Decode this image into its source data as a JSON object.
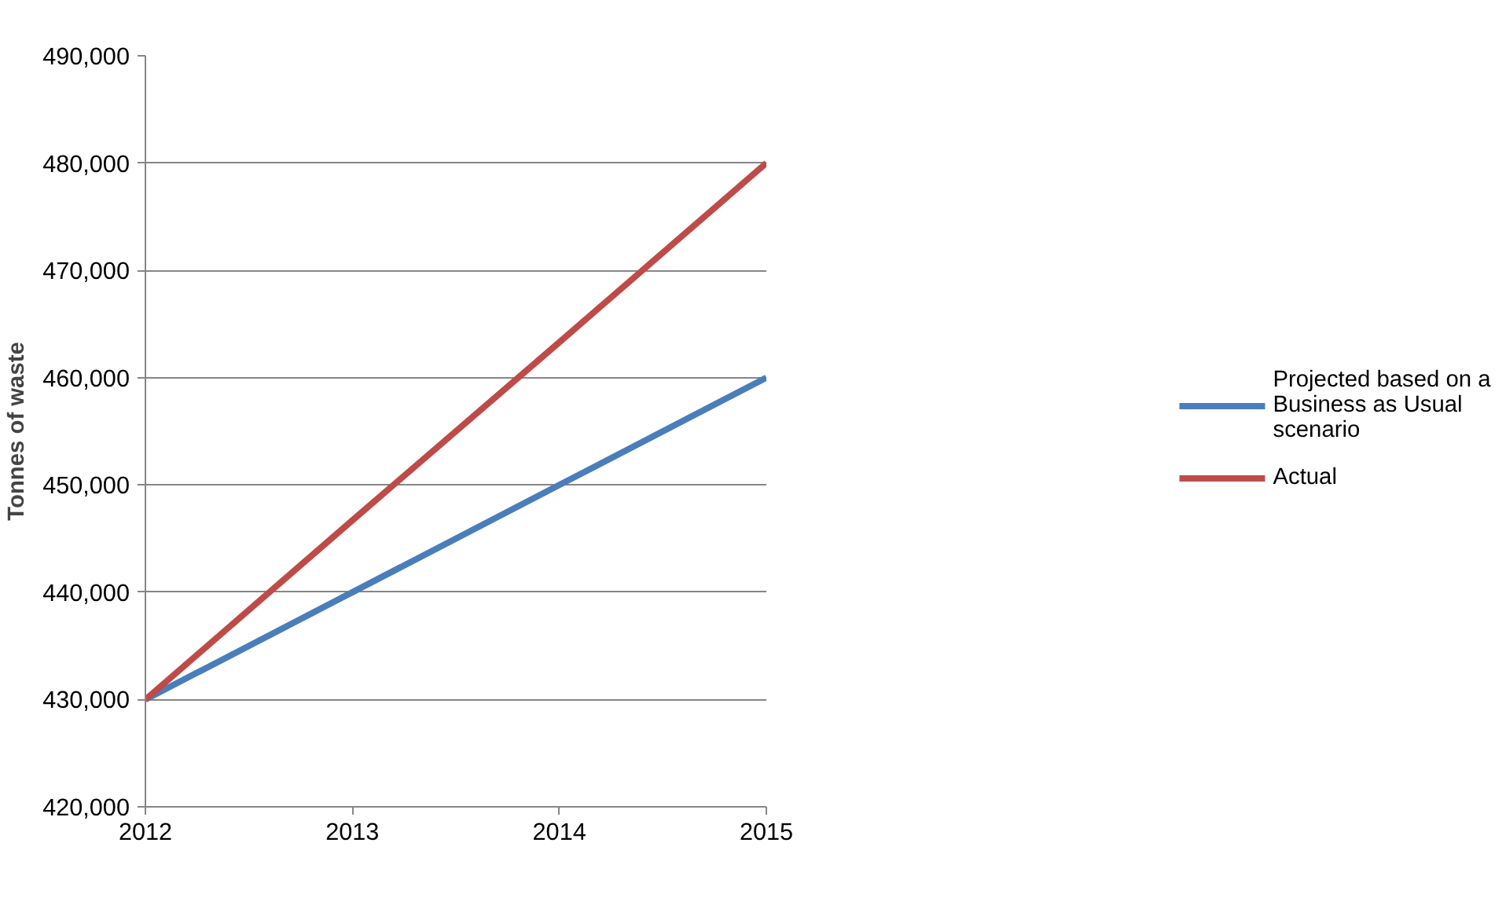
{
  "chart_data": {
    "type": "line",
    "ylabel": "Tonnes of waste",
    "x": [
      2012,
      2013,
      2014,
      2015
    ],
    "series": [
      {
        "name": "Projected based on a Business as Usual scenario",
        "color": "#4a7ebb",
        "values": [
          430000,
          440000,
          450000,
          460000
        ]
      },
      {
        "name": "Actual",
        "color": "#be4b48",
        "values": [
          430000,
          446700,
          463300,
          480000
        ]
      }
    ],
    "xlim": [
      2012,
      2015
    ],
    "xticks": [
      2012,
      2013,
      2014,
      2015
    ],
    "ylim": [
      420000,
      490000
    ],
    "yticks": [
      {
        "value": 420000,
        "label": "420,000"
      },
      {
        "value": 430000,
        "label": "430,000"
      },
      {
        "value": 440000,
        "label": "440,000"
      },
      {
        "value": 450000,
        "label": "450,000"
      },
      {
        "value": 460000,
        "label": "460,000"
      },
      {
        "value": 470000,
        "label": "470,000"
      },
      {
        "value": 480000,
        "label": "480,000"
      },
      {
        "value": 490000,
        "label": "490,000"
      }
    ],
    "grid": "y",
    "legend": "right",
    "marker": "none",
    "line_style": "solid"
  }
}
